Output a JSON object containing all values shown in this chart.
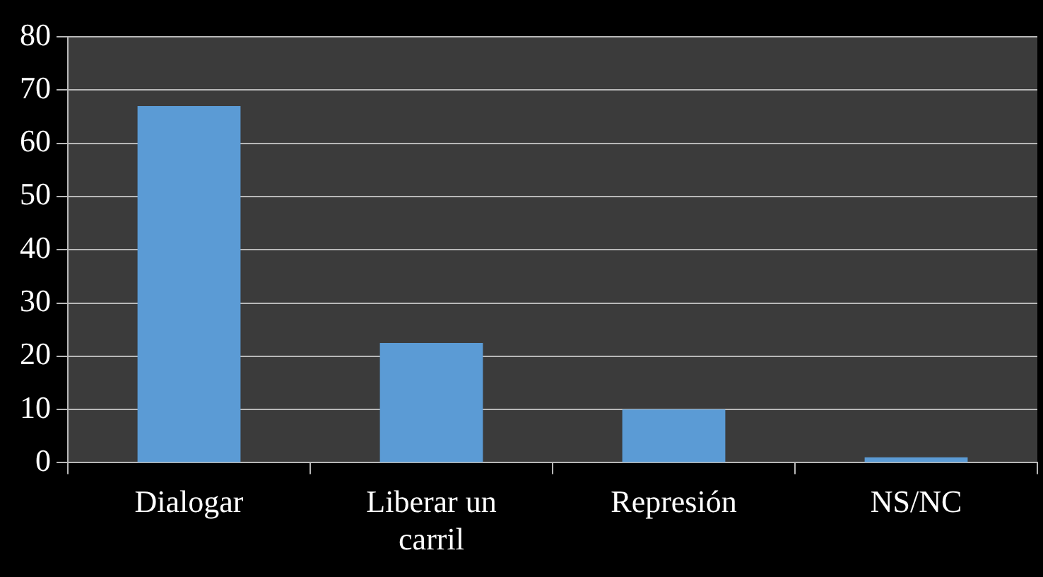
{
  "chart_data": {
    "type": "bar",
    "categories": [
      "Dialogar",
      "Liberar un carril",
      "Represión",
      "NS/NC"
    ],
    "values": [
      67,
      22.5,
      10,
      1
    ],
    "color": "#5b9bd5",
    "ylim": [
      0,
      80
    ],
    "yticks": [
      0,
      10,
      20,
      30,
      40,
      50,
      60,
      70,
      80
    ],
    "grid": "y",
    "legend": false
  }
}
